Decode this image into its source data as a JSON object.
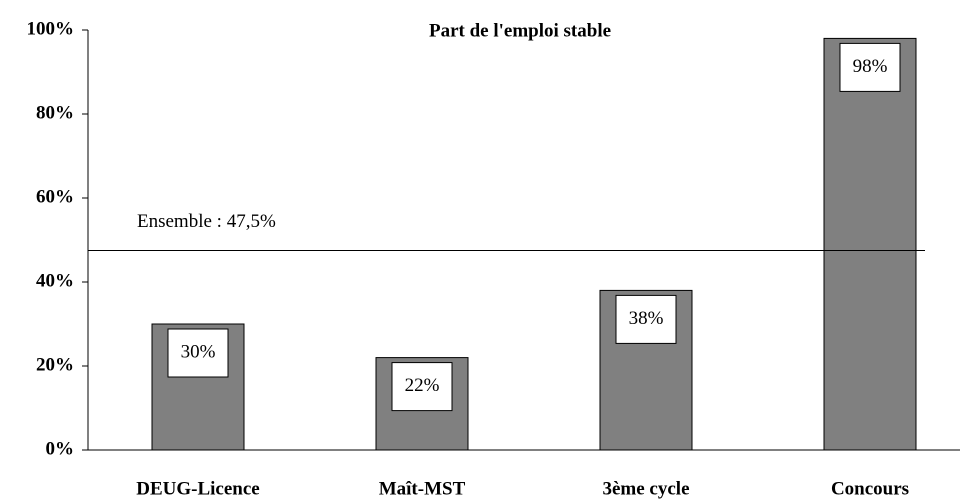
{
  "chart_data": {
    "type": "bar",
    "title": "Part de l'emploi stable",
    "categories": [
      "DEUG-Licence",
      "Maît-MST",
      "3ème cycle",
      "Concours"
    ],
    "values": [
      30,
      22,
      38,
      98
    ],
    "value_labels": [
      "30%",
      "22%",
      "38%",
      "98%"
    ],
    "color": "#808080",
    "ylim": [
      0,
      100
    ],
    "yticks": [
      {
        "value": 0,
        "label": "0%"
      },
      {
        "value": 20,
        "label": "20%"
      },
      {
        "value": 40,
        "label": "40%"
      },
      {
        "value": 60,
        "label": "60%"
      },
      {
        "value": 80,
        "label": "80%"
      },
      {
        "value": 100,
        "label": "100%"
      }
    ],
    "reference_line": {
      "value": 47.5,
      "label": "Ensemble : 47,5%"
    }
  }
}
